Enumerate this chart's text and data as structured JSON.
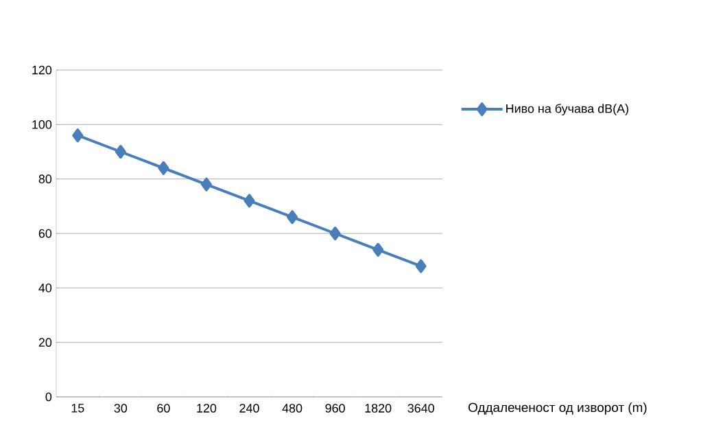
{
  "chart_data": {
    "type": "line",
    "xlabel": "Оддалеченост од изворот (m)",
    "categories": [
      "15",
      "30",
      "60",
      "120",
      "240",
      "480",
      "960",
      "1820",
      "3640"
    ],
    "series": [
      {
        "name": "Ниво на бучава dB(A)",
        "color": "#4a7ebb",
        "values": [
          96,
          90,
          84,
          78,
          72,
          66,
          60,
          54,
          48
        ]
      }
    ],
    "ylim": [
      0,
      120
    ],
    "yticks": [
      0,
      20,
      40,
      60,
      80,
      100,
      120
    ],
    "grid": "y",
    "legend": "right",
    "marker": "diamond",
    "line_style": "solid"
  }
}
